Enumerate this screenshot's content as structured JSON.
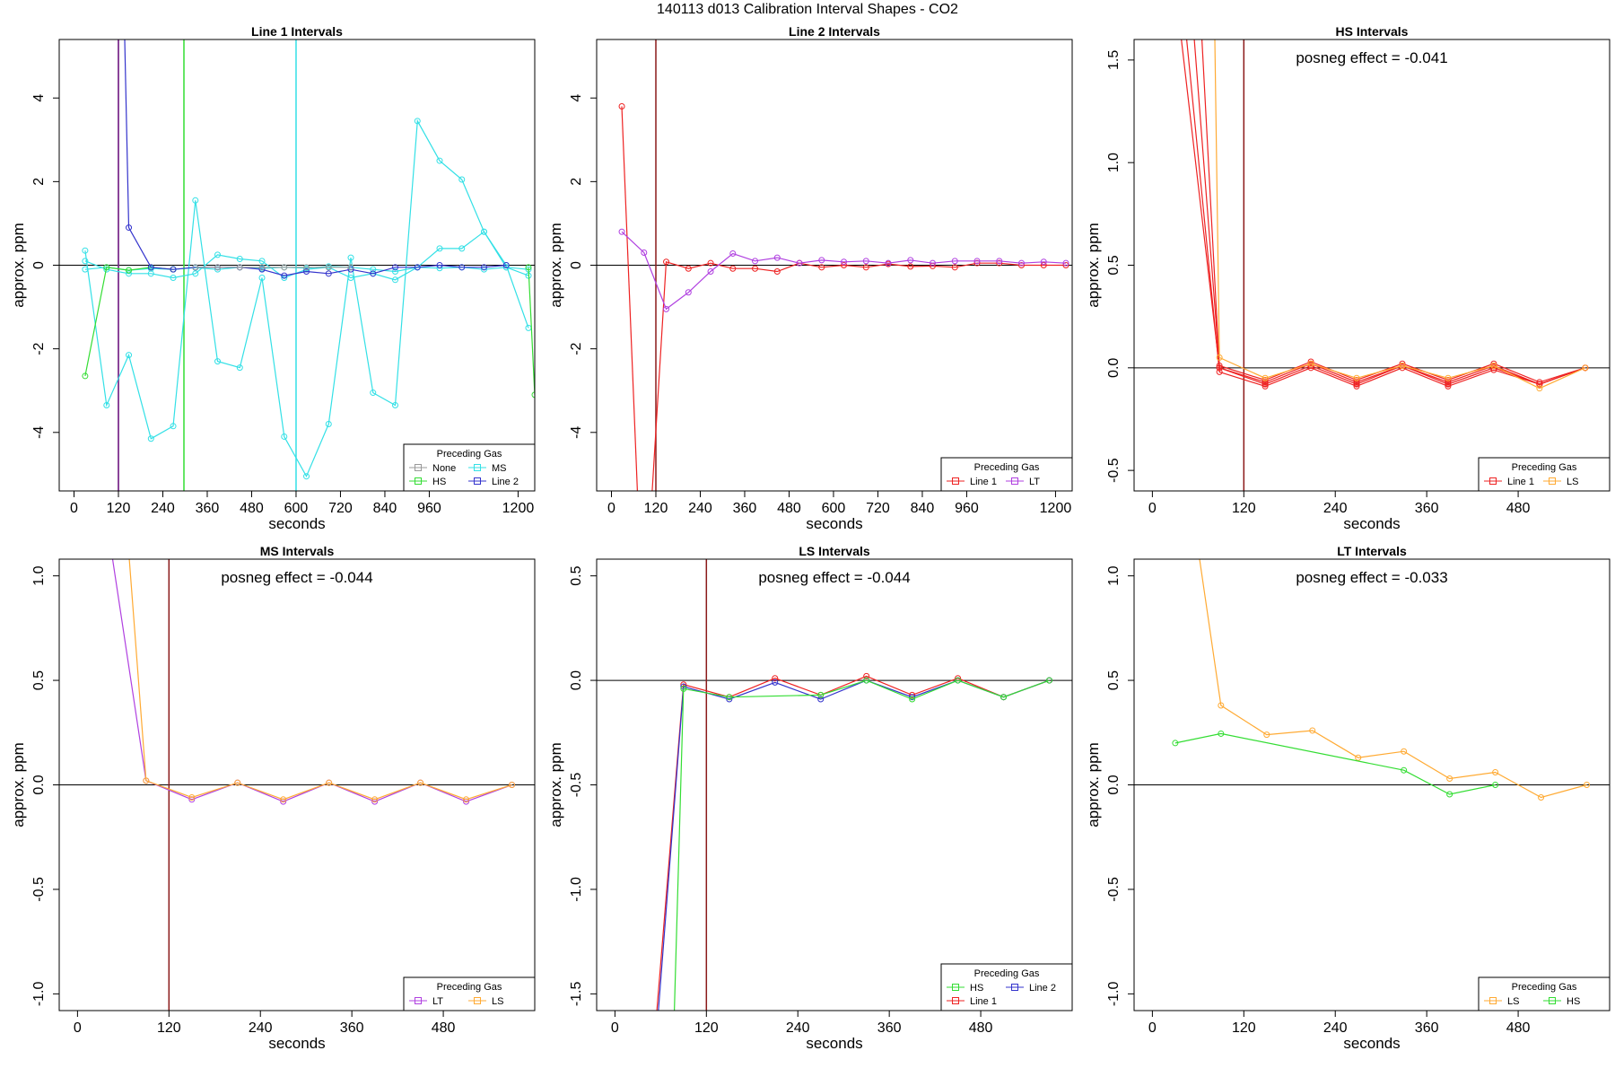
{
  "figure": {
    "title": "140113  d013   Calibration Interval Shapes - CO2"
  },
  "colors": {
    "None": "#999999",
    "MS": "#33e0e6",
    "HS": "#33dd33",
    "Line 2": "#3333cc",
    "Line 1": "#ee2222",
    "LT": "#b040e0",
    "LS": "#ffaa33",
    "axis": "#000000",
    "vline": "#8b1a1a"
  },
  "chart_data": [
    {
      "type": "line",
      "title": "Line 1 Intervals",
      "xlabel": "seconds",
      "ylabel": "approx. ppm",
      "xlim": [
        -40,
        1245
      ],
      "ylim": [
        -5.4,
        5.4
      ],
      "xticks": [
        0,
        120,
        240,
        360,
        480,
        600,
        720,
        840,
        960,
        1200
      ],
      "yticks": [
        -4,
        -2,
        0,
        2,
        4
      ],
      "hlines": [
        0
      ],
      "vlines": [
        {
          "x": 120,
          "color": "#7a2a8a"
        },
        {
          "x": 120,
          "color": "#7a2a8a"
        },
        {
          "x": 297,
          "color": "#33dd33"
        },
        {
          "x": 600,
          "color": "#33e0e6"
        }
      ],
      "legend": {
        "title": "Preceding Gas",
        "position": "bottom-right",
        "columns": 2,
        "entries": [
          "None",
          "MS",
          "HS",
          "Line 2"
        ]
      },
      "series": [
        {
          "name": "MS",
          "x": [
            30,
            88,
            148,
            208,
            268,
            328,
            388,
            448,
            508,
            568,
            628,
            688,
            748,
            808,
            868,
            928,
            988,
            1048,
            1108,
            1168,
            1228
          ],
          "y": [
            0.35,
            -3.35,
            -2.15,
            -4.15,
            -3.85,
            1.55,
            -2.3,
            -2.45,
            -0.3,
            -4.1,
            -5.05,
            -3.8,
            0.18,
            -3.05,
            -3.35,
            3.45,
            2.5,
            2.05,
            0.8,
            0.0,
            -1.5
          ]
        },
        {
          "name": "MS",
          "x": [
            30,
            88,
            148,
            208,
            268,
            328,
            388,
            448,
            508,
            568,
            628,
            688,
            748,
            808,
            868,
            928,
            988,
            1048,
            1108,
            1168,
            1228
          ],
          "y": [
            0.1,
            -0.1,
            -0.2,
            -0.2,
            -0.3,
            -0.2,
            0.25,
            0.15,
            0.1,
            -0.3,
            -0.1,
            -0.05,
            -0.3,
            -0.2,
            -0.35,
            -0.05,
            0.4,
            0.4,
            0.8,
            -0.05,
            -0.25
          ]
        },
        {
          "name": "MS",
          "x": [
            30,
            88,
            148,
            208,
            268,
            328,
            388,
            448,
            508,
            568,
            628,
            688,
            748,
            808,
            868,
            928,
            988,
            1048,
            1108,
            1168,
            1228
          ],
          "y": [
            -0.1,
            -0.05,
            -0.12,
            -0.08,
            -0.1,
            -0.06,
            -0.1,
            -0.05,
            -0.08,
            -0.05,
            -0.07,
            -0.03,
            -0.05,
            -0.1,
            -0.15,
            -0.05,
            -0.07,
            -0.05,
            -0.1,
            -0.05,
            -0.1
          ]
        },
        {
          "name": "HS",
          "x": [
            30,
            88,
            148,
            208,
            268
          ],
          "y": [
            -2.65,
            -0.05,
            -0.12,
            -0.05,
            -0.1
          ]
        },
        {
          "name": "HS",
          "x": [
            1228,
            1245
          ],
          "y": [
            -0.05,
            -3.1
          ]
        },
        {
          "name": "Line 2",
          "x": [
            137,
            148,
            208,
            268,
            328,
            388,
            448,
            508,
            568,
            628,
            688,
            748,
            808,
            868,
            928,
            988,
            1048,
            1108,
            1168
          ],
          "y": [
            5.4,
            0.9,
            -0.05,
            -0.1,
            -0.05,
            -0.05,
            -0.05,
            -0.1,
            -0.25,
            -0.15,
            -0.2,
            -0.1,
            -0.2,
            -0.05,
            -0.05,
            0.0,
            -0.05,
            -0.05,
            0.0
          ]
        },
        {
          "name": "None",
          "x": [
            328,
            388,
            448,
            508,
            568,
            628,
            688,
            748
          ],
          "y": [
            -0.05,
            -0.05,
            -0.05,
            -0.05,
            -0.05,
            -0.05,
            -0.05,
            -0.05
          ]
        }
      ]
    },
    {
      "type": "line",
      "title": "Line 2 Intervals",
      "xlabel": "seconds",
      "ylabel": "approx. ppm",
      "xlim": [
        -40,
        1245
      ],
      "ylim": [
        -5.4,
        5.4
      ],
      "xticks": [
        0,
        120,
        240,
        360,
        480,
        600,
        720,
        840,
        960,
        1200
      ],
      "yticks": [
        -4,
        -2,
        0,
        2,
        4
      ],
      "hlines": [
        0
      ],
      "vlines": [
        {
          "x": 120,
          "color": "#8b1a1a"
        }
      ],
      "legend": {
        "title": "Preceding Gas",
        "position": "bottom-right",
        "columns": 2,
        "entries": [
          "Line 1",
          "LT"
        ]
      },
      "series": [
        {
          "name": "Line 1",
          "x": [
            28,
            70
          ],
          "y": [
            3.8,
            -5.4
          ]
        },
        {
          "name": "Line 1",
          "x": [
            110,
            148,
            208,
            268,
            328,
            388,
            448,
            508,
            568,
            628,
            688,
            748,
            808,
            868,
            928,
            988,
            1048,
            1108,
            1168,
            1228
          ],
          "y": [
            -5.4,
            0.08,
            -0.08,
            0.05,
            -0.08,
            -0.08,
            -0.15,
            0.05,
            -0.05,
            0.0,
            -0.05,
            0.03,
            -0.03,
            -0.02,
            -0.05,
            0.05,
            0.05,
            0.0,
            0.0,
            0.0
          ]
        },
        {
          "name": "LT",
          "x": [
            28,
            88,
            148,
            208,
            268,
            328,
            388,
            448,
            508,
            568,
            628,
            688,
            748,
            808,
            868,
            928,
            988,
            1048,
            1108,
            1168,
            1228
          ],
          "y": [
            0.8,
            0.3,
            -1.05,
            -0.65,
            -0.15,
            0.28,
            0.1,
            0.18,
            0.05,
            0.12,
            0.08,
            0.1,
            0.05,
            0.12,
            0.05,
            0.1,
            0.1,
            0.1,
            0.05,
            0.08,
            0.05
          ]
        }
      ]
    },
    {
      "type": "line",
      "title": "HS Intervals",
      "xlabel": "seconds",
      "ylabel": "approx. ppm",
      "xlim": [
        -24,
        600
      ],
      "ylim": [
        -0.6,
        1.6
      ],
      "xticks": [
        0,
        120,
        240,
        360,
        480
      ],
      "yticks": [
        -0.5,
        0.0,
        0.5,
        1.0,
        1.5
      ],
      "hlines": [
        0
      ],
      "vlines": [
        {
          "x": 120,
          "color": "#8b1a1a"
        }
      ],
      "annotation": "posneg effect = -0.041",
      "legend": {
        "title": "Preceding Gas",
        "position": "bottom-right",
        "columns": 2,
        "entries": [
          "Line 1",
          "LS"
        ]
      },
      "series": [
        {
          "name": "Line 1",
          "x": [
            38,
            88,
            148,
            208,
            268,
            328,
            388,
            448,
            508,
            568
          ],
          "y": [
            1.6,
            0.0,
            -0.07,
            0.02,
            -0.07,
            0.01,
            -0.07,
            0.01,
            -0.08,
            0.0
          ]
        },
        {
          "name": "Line 1",
          "x": [
            45,
            88,
            148,
            208,
            268,
            328,
            388,
            448,
            508,
            568
          ],
          "y": [
            1.6,
            -0.02,
            -0.09,
            0.0,
            -0.09,
            0.0,
            -0.09,
            -0.01,
            -0.08,
            0.0
          ]
        },
        {
          "name": "Line 1",
          "x": [
            55,
            88,
            148,
            208,
            268,
            328,
            388,
            448,
            508,
            568
          ],
          "y": [
            1.6,
            0.01,
            -0.06,
            0.03,
            -0.06,
            0.02,
            -0.06,
            0.02,
            -0.07,
            0.0
          ]
        },
        {
          "name": "Line 1",
          "x": [
            65,
            88,
            148,
            208,
            268,
            328,
            388,
            448,
            508,
            568
          ],
          "y": [
            1.6,
            0.0,
            -0.08,
            0.01,
            -0.08,
            0.01,
            -0.08,
            0.0,
            -0.08,
            0.0
          ]
        },
        {
          "name": "LS",
          "x": [
            82,
            88,
            148,
            208,
            268,
            328,
            388,
            448,
            508,
            568
          ],
          "y": [
            1.6,
            0.05,
            -0.05,
            0.02,
            -0.05,
            0.01,
            -0.05,
            0.01,
            -0.1,
            0.0
          ]
        }
      ]
    },
    {
      "type": "line",
      "title": "MS Intervals",
      "xlabel": "seconds",
      "ylabel": "approx. ppm",
      "xlim": [
        -24,
        600
      ],
      "ylim": [
        -1.08,
        1.08
      ],
      "xticks": [
        0,
        120,
        240,
        360,
        480
      ],
      "yticks": [
        -1.0,
        -0.5,
        0.0,
        0.5,
        1.0
      ],
      "hlines": [
        0
      ],
      "vlines": [
        {
          "x": 120,
          "color": "#8b1a1a"
        }
      ],
      "annotation": "posneg effect = -0.044",
      "legend": {
        "title": "Preceding Gas",
        "position": "bottom-right",
        "columns": 2,
        "entries": [
          "LT",
          "LS"
        ]
      },
      "series": [
        {
          "name": "LT",
          "x": [
            46,
            90,
            150,
            210,
            270,
            330,
            390,
            450,
            510,
            570
          ],
          "y": [
            1.08,
            0.02,
            -0.07,
            0.01,
            -0.08,
            0.01,
            -0.08,
            0.01,
            -0.08,
            0.0
          ]
        },
        {
          "name": "LS",
          "x": [
            68,
            90,
            150,
            210,
            270,
            330,
            390,
            450,
            510,
            570
          ],
          "y": [
            1.08,
            0.02,
            -0.06,
            0.01,
            -0.07,
            0.01,
            -0.07,
            0.01,
            -0.07,
            0.0
          ]
        }
      ]
    },
    {
      "type": "line",
      "title": "LS Intervals",
      "xlabel": "seconds",
      "ylabel": "approx. ppm",
      "xlim": [
        -24,
        600
      ],
      "ylim": [
        -1.58,
        0.58
      ],
      "xticks": [
        0,
        120,
        240,
        360,
        480
      ],
      "yticks": [
        -1.5,
        -1.0,
        -0.5,
        0.0,
        0.5
      ],
      "hlines": [
        0
      ],
      "vlines": [
        {
          "x": 120,
          "color": "#8b1a1a"
        }
      ],
      "annotation": "posneg effect = -0.044",
      "legend": {
        "title": "Preceding Gas",
        "position": "bottom-right",
        "columns": 2,
        "entries": [
          "HS",
          "Line 2",
          "Line 1"
        ]
      },
      "series": [
        {
          "name": "Line 1",
          "x": [
            55,
            90,
            150,
            210,
            270,
            330,
            390,
            450,
            510,
            570
          ],
          "y": [
            -1.58,
            -0.02,
            -0.08,
            0.01,
            -0.07,
            0.02,
            -0.07,
            0.01,
            -0.08,
            0.0
          ]
        },
        {
          "name": "Line 2",
          "x": [
            57,
            90,
            150,
            210,
            270,
            330,
            390,
            450,
            510,
            570
          ],
          "y": [
            -1.58,
            -0.03,
            -0.09,
            -0.01,
            -0.09,
            0.0,
            -0.08,
            0.0,
            -0.08,
            0.0
          ]
        },
        {
          "name": "HS",
          "x": [
            78,
            90,
            150,
            270,
            330,
            390,
            450,
            510,
            570
          ],
          "y": [
            -1.58,
            -0.04,
            -0.08,
            -0.07,
            0.0,
            -0.09,
            0.0,
            -0.08,
            0.0
          ]
        }
      ]
    },
    {
      "type": "line",
      "title": "LT Intervals",
      "xlabel": "seconds",
      "ylabel": "approx. ppm",
      "xlim": [
        -24,
        600
      ],
      "ylim": [
        -1.08,
        1.08
      ],
      "xticks": [
        0,
        120,
        240,
        360,
        480
      ],
      "yticks": [
        -1.0,
        -0.5,
        0.0,
        0.5,
        1.0
      ],
      "hlines": [
        0
      ],
      "vlines": [],
      "annotation": "posneg effect = -0.033",
      "legend": {
        "title": "Preceding Gas",
        "position": "bottom-right",
        "columns": 2,
        "entries": [
          "LS",
          "HS"
        ]
      },
      "series": [
        {
          "name": "LS",
          "x": [
            62,
            90,
            150,
            210,
            270,
            330,
            390,
            450,
            510,
            570
          ],
          "y": [
            1.08,
            0.38,
            0.24,
            0.26,
            0.13,
            0.16,
            0.03,
            0.06,
            -0.06,
            0.0
          ]
        },
        {
          "name": "HS",
          "x": [
            30,
            90,
            330,
            390,
            450
          ],
          "y": [
            0.2,
            0.245,
            0.07,
            -0.045,
            0.0
          ]
        }
      ]
    }
  ]
}
